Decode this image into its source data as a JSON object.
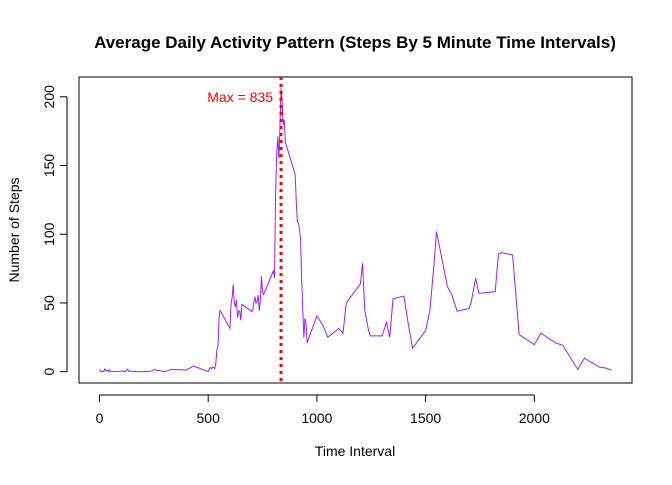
{
  "chart_data": {
    "type": "line",
    "title": "Average Daily Activity Pattern (Steps By 5 Minute Time Intervals)",
    "xlabel": "Time Interval",
    "ylabel": "Number of Steps",
    "x": [
      0,
      5,
      10,
      15,
      20,
      25,
      30,
      35,
      40,
      45,
      50,
      55,
      100,
      105,
      110,
      115,
      120,
      125,
      130,
      135,
      140,
      145,
      150,
      155,
      200,
      230,
      250,
      300,
      330,
      400,
      430,
      450,
      500,
      505,
      510,
      515,
      520,
      525,
      530,
      535,
      540,
      545,
      550,
      555,
      600,
      605,
      610,
      615,
      620,
      625,
      630,
      635,
      640,
      645,
      650,
      655,
      700,
      705,
      710,
      715,
      720,
      725,
      730,
      735,
      740,
      745,
      750,
      755,
      800,
      805,
      810,
      815,
      820,
      825,
      830,
      835,
      840,
      845,
      850,
      855,
      900,
      905,
      910,
      915,
      920,
      925,
      930,
      935,
      940,
      945,
      950,
      955,
      1000,
      1030,
      1050,
      1100,
      1120,
      1135,
      1200,
      1210,
      1220,
      1235,
      1245,
      1300,
      1320,
      1335,
      1350,
      1400,
      1420,
      1440,
      1500,
      1520,
      1540,
      1550,
      1600,
      1620,
      1645,
      1700,
      1710,
      1730,
      1745,
      1805,
      1820,
      1835,
      1850,
      1900,
      1930,
      2000,
      2030,
      2100,
      2130,
      2200,
      2230,
      2300,
      2330,
      2355
    ],
    "values": [
      1.7,
      0.3,
      0.1,
      0.2,
      0.1,
      2.1,
      0.5,
      0.9,
      0,
      1.5,
      0.3,
      0.1,
      0.3,
      0.7,
      0.2,
      0.3,
      0,
      1.1,
      1.8,
      0.2,
      0.2,
      0.4,
      0.3,
      0,
      0,
      0,
      1.5,
      0,
      1.6,
      1.2,
      4.1,
      3.1,
      0,
      1.5,
      3,
      2.2,
      3.3,
      3,
      2.1,
      6,
      16,
      18.3,
      39.5,
      44.5,
      31.5,
      49.3,
      53.8,
      63.5,
      50,
      47.1,
      52.2,
      39.3,
      44,
      44.2,
      37.4,
      49,
      43.8,
      44.4,
      50.5,
      54.5,
      49.9,
      51,
      55.7,
      44.3,
      52.3,
      69.5,
      57.8,
      56.2,
      73.4,
      68.2,
      129.4,
      157.5,
      171.2,
      155.4,
      177.3,
      206.2,
      195.9,
      179.6,
      183.4,
      167,
      143.5,
      124,
      109.1,
      108.1,
      103.7,
      95.9,
      66.2,
      45.2,
      24.8,
      38.8,
      35,
      21,
      40.6,
      33,
      25,
      31.4,
      28,
      50,
      63.9,
      78.9,
      45,
      32,
      26,
      26,
      36,
      25,
      53,
      55,
      35,
      17,
      30,
      45,
      81,
      102,
      62,
      56,
      44,
      46,
      51,
      68,
      57,
      58,
      58.4,
      85.6,
      86.6,
      84.9,
      27,
      19.6,
      28,
      20.7,
      19.4,
      1.6,
      9.8,
      3.3,
      2.6,
      1.1
    ],
    "color": "#A020F0",
    "vline": {
      "x": 835,
      "color": "#FF0000",
      "label": "Max = 835"
    },
    "xlim": [
      -94.2,
      2449.2
    ],
    "xticks": [
      0,
      500,
      1000,
      1500,
      2000
    ],
    "ylim": [
      -8.25,
      214.4
    ],
    "yticks": [
      0,
      50,
      100,
      150,
      200
    ]
  }
}
